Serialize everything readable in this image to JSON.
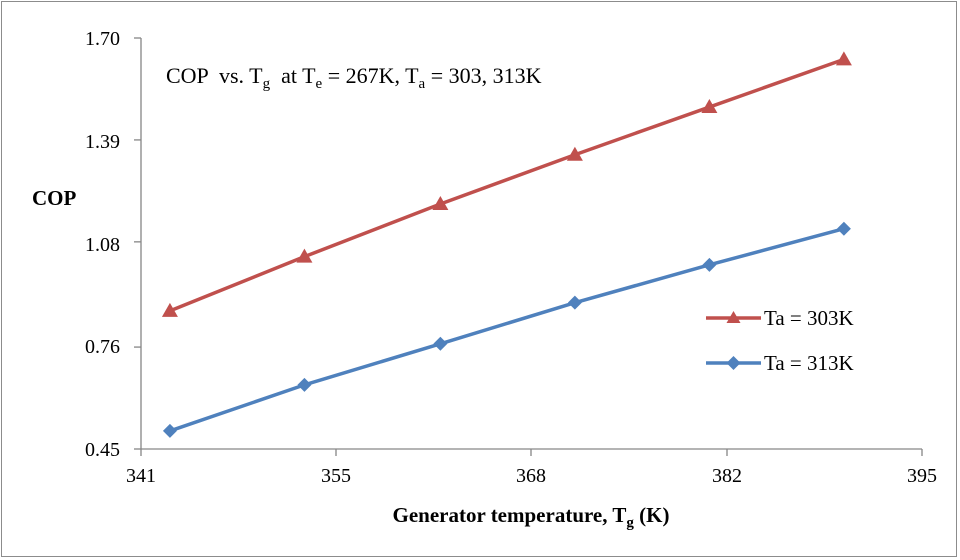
{
  "chart_data": {
    "type": "line",
    "annotation": {
      "prefix": "COP  vs. T",
      "g_sub": "g",
      "mid": "  at T",
      "e_sub": "e",
      "mid2": " = 267K, T",
      "a_sub": "a",
      "suffix": " = 303, 313K"
    },
    "xlabel": {
      "main": "Generator temperature, T",
      "sub": "g",
      "unit": " (K)"
    },
    "ylabel": "COP",
    "xlim": [
      341,
      395
    ],
    "ylim": [
      0.45,
      1.7
    ],
    "x_ticks": [
      "341",
      "355",
      "368",
      "382",
      "395"
    ],
    "y_ticks": [
      "1.70",
      "1.39",
      "1.08",
      "0.76",
      "0.45"
    ],
    "grid": false,
    "legend_position": "right",
    "series": [
      {
        "name": "Ta = 303K",
        "color": "#c0504d",
        "marker": "triangle",
        "x": [
          343,
          352.3,
          361.7,
          371,
          380.3,
          389.6
        ],
        "y": [
          0.87,
          1.035,
          1.195,
          1.345,
          1.49,
          1.635
        ]
      },
      {
        "name": "Ta = 313K",
        "color": "#4f81bd",
        "marker": "diamond",
        "x": [
          343,
          352.3,
          361.7,
          371,
          380.3,
          389.6
        ],
        "y": [
          0.505,
          0.645,
          0.77,
          0.895,
          1.01,
          1.12
        ]
      }
    ]
  }
}
